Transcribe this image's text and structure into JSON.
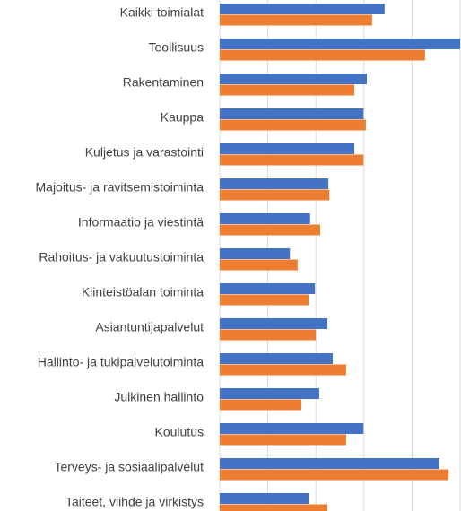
{
  "chart_data": {
    "type": "barh",
    "categories": [
      "Kaikki toimialat",
      "Teollisuus",
      "Rakentaminen",
      "Kauppa",
      "Kuljetus ja varastointi",
      "Majoitus- ja ravitsemistoiminta",
      "Informaatio ja viestintä",
      "Rahoitus- ja vakuutustoiminta",
      "Kiinteistöalan toiminta",
      "Asiantuntijapalvelut",
      "Hallinto- ja tukipalvelutoiminta",
      "Julkinen hallinto",
      "Koulutus",
      "Terveys- ja sosiaalipalvelut",
      "Taiteet, viihde ja virkistys"
    ],
    "series": [
      {
        "color": "#4472c4",
        "values": [
          3.43,
          5.0,
          3.06,
          2.99,
          2.8,
          2.26,
          1.88,
          1.46,
          1.98,
          2.24,
          2.35,
          2.07,
          2.99,
          4.57,
          1.85
        ]
      },
      {
        "color": "#ed7d31",
        "values": [
          3.17,
          4.27,
          2.8,
          3.04,
          2.99,
          2.28,
          2.09,
          1.62,
          1.85,
          2.0,
          2.63,
          1.7,
          2.63,
          4.76,
          2.24
        ]
      }
    ],
    "xlim": [
      0,
      5
    ],
    "xticks": [
      0,
      1,
      2,
      3,
      4,
      5
    ],
    "grid": true
  }
}
